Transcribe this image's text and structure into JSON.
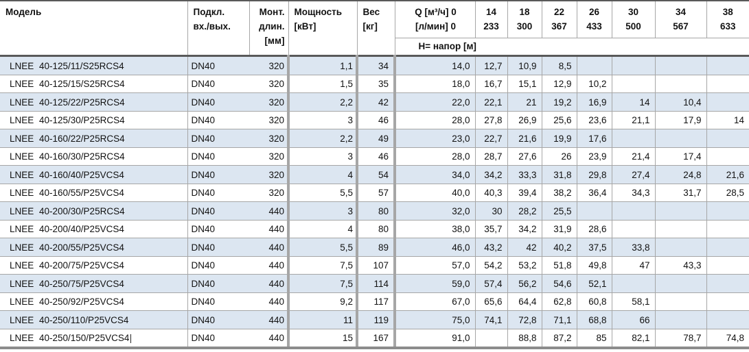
{
  "colors": {
    "stripe": "#dce6f1",
    "grid": "#a6a6a6",
    "header_rule": "#595959",
    "bottom_rule": "#8c8c8c"
  },
  "table": {
    "header": {
      "model": "Модель",
      "connection": "Подкл.\nвх./вых.",
      "mount_length": "Монт.\nдлин.\n[мм]",
      "power": "Мощность\n[кВт]",
      "weight": "Вес\n[кг]",
      "flow_title": "Q [м³/ч] 0\n[л/мин] 0",
      "flow_columns": [
        {
          "m3h": "14",
          "lmin": "233"
        },
        {
          "m3h": "18",
          "lmin": "300"
        },
        {
          "m3h": "22",
          "lmin": "367"
        },
        {
          "m3h": "26",
          "lmin": "433"
        },
        {
          "m3h": "30",
          "lmin": "500"
        },
        {
          "m3h": "34",
          "lmin": "567"
        },
        {
          "m3h": "38",
          "lmin": "633"
        }
      ],
      "head_subheader": "H= напор [м]"
    },
    "rows": [
      {
        "brand": "LNEE",
        "code": "40-125/11/S25RCS4",
        "connection": "DN40",
        "mount_length": "320",
        "power": "1,1",
        "weight": "34",
        "head": [
          "14,0",
          "12,7",
          "10,9",
          "8,5",
          "",
          "",
          "",
          ""
        ]
      },
      {
        "brand": "LNEE",
        "code": "40-125/15/S25RCS4",
        "connection": "DN40",
        "mount_length": "320",
        "power": "1,5",
        "weight": "35",
        "head": [
          "18,0",
          "16,7",
          "15,1",
          "12,9",
          "10,2",
          "",
          "",
          ""
        ]
      },
      {
        "brand": "LNEE",
        "code": "40-125/22/P25RCS4",
        "connection": "DN40",
        "mount_length": "320",
        "power": "2,2",
        "weight": "42",
        "head": [
          "22,0",
          "22,1",
          "21",
          "19,2",
          "16,9",
          "14",
          "10,4",
          ""
        ]
      },
      {
        "brand": "LNEE",
        "code": "40-125/30/P25RCS4",
        "connection": "DN40",
        "mount_length": "320",
        "power": "3",
        "weight": "46",
        "head": [
          "28,0",
          "27,8",
          "26,9",
          "25,6",
          "23,6",
          "21,1",
          "17,9",
          "14"
        ]
      },
      {
        "brand": "LNEE",
        "code": "40-160/22/P25RCS4",
        "connection": "DN40",
        "mount_length": "320",
        "power": "2,2",
        "weight": "49",
        "head": [
          "23,0",
          "22,7",
          "21,6",
          "19,9",
          "17,6",
          "",
          "",
          ""
        ]
      },
      {
        "brand": "LNEE",
        "code": "40-160/30/P25RCS4",
        "connection": "DN40",
        "mount_length": "320",
        "power": "3",
        "weight": "46",
        "head": [
          "28,0",
          "28,7",
          "27,6",
          "26",
          "23,9",
          "21,4",
          "17,4",
          ""
        ]
      },
      {
        "brand": "LNEE",
        "code": "40-160/40/P25VCS4",
        "connection": "DN40",
        "mount_length": "320",
        "power": "4",
        "weight": "54",
        "head": [
          "34,0",
          "34,2",
          "33,3",
          "31,8",
          "29,8",
          "27,4",
          "24,8",
          "21,6"
        ]
      },
      {
        "brand": "LNEE",
        "code": "40-160/55/P25VCS4",
        "connection": "DN40",
        "mount_length": "320",
        "power": "5,5",
        "weight": "57",
        "head": [
          "40,0",
          "40,3",
          "39,4",
          "38,2",
          "36,4",
          "34,3",
          "31,7",
          "28,5"
        ]
      },
      {
        "brand": "LNEE",
        "code": "40-200/30/P25RCS4",
        "connection": "DN40",
        "mount_length": "440",
        "power": "3",
        "weight": "80",
        "head": [
          "32,0",
          "30",
          "28,2",
          "25,5",
          "",
          "",
          "",
          ""
        ]
      },
      {
        "brand": "LNEE",
        "code": "40-200/40/P25VCS4",
        "connection": "DN40",
        "mount_length": "440",
        "power": "4",
        "weight": "80",
        "head": [
          "38,0",
          "35,7",
          "34,2",
          "31,9",
          "28,6",
          "",
          "",
          ""
        ]
      },
      {
        "brand": "LNEE",
        "code": "40-200/55/P25VCS4",
        "connection": "DN40",
        "mount_length": "440",
        "power": "5,5",
        "weight": "89",
        "head": [
          "46,0",
          "43,2",
          "42",
          "40,2",
          "37,5",
          "33,8",
          "",
          ""
        ]
      },
      {
        "brand": "LNEE",
        "code": "40-200/75/P25VCS4",
        "connection": "DN40",
        "mount_length": "440",
        "power": "7,5",
        "weight": "107",
        "head": [
          "57,0",
          "54,2",
          "53,2",
          "51,8",
          "49,8",
          "47",
          "43,3",
          ""
        ]
      },
      {
        "brand": "LNEE",
        "code": "40-250/75/P25VCS4",
        "connection": "DN40",
        "mount_length": "440",
        "power": "7,5",
        "weight": "114",
        "head": [
          "59,0",
          "57,4",
          "56,2",
          "54,6",
          "52,1",
          "",
          "",
          ""
        ]
      },
      {
        "brand": "LNEE",
        "code": "40-250/92/P25VCS4",
        "connection": "DN40",
        "mount_length": "440",
        "power": "9,2",
        "weight": "117",
        "head": [
          "67,0",
          "65,6",
          "64,4",
          "62,8",
          "60,8",
          "58,1",
          "",
          ""
        ]
      },
      {
        "brand": "LNEE",
        "code": "40-250/110/P25VCS4",
        "connection": "DN40",
        "mount_length": "440",
        "power": "11",
        "weight": "119",
        "head": [
          "75,0",
          "74,1",
          "72,8",
          "71,1",
          "68,8",
          "66",
          "",
          ""
        ]
      },
      {
        "brand": "LNEE",
        "code": "40-250/150/P25VCS4",
        "connection": "DN40",
        "mount_length": "440",
        "power": "15",
        "weight": "167",
        "head": [
          "91,0",
          "",
          "88,8",
          "87,2",
          "85",
          "82,1",
          "78,7",
          "74,8"
        ],
        "text_cursor": true
      }
    ]
  }
}
